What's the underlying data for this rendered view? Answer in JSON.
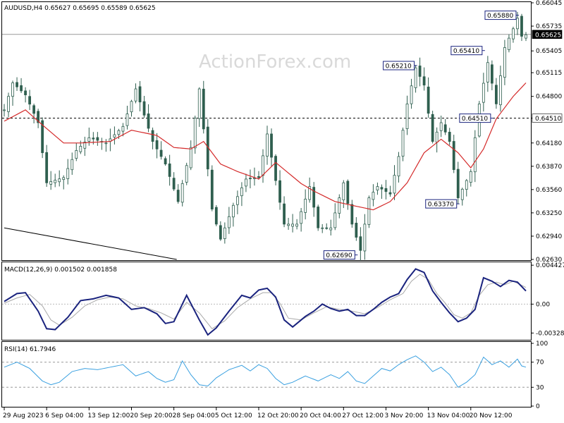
{
  "colors": {
    "candle": "#2f5f4f",
    "ma": "#d42a2a",
    "macd": "#1a237e",
    "signal": "#a9a9a9",
    "rsi": "#3aa0e0",
    "annot_border": "#1a237e",
    "price_tag_bg": "#000000"
  },
  "chart_data": [
    {
      "type": "candlestick",
      "title": "AUDUSD,H4  0.65627 0.65695 0.65589 0.65625",
      "watermark": "ActionForex.com",
      "ylim": [
        0.6263,
        0.66045
      ],
      "y_ticks": [
        "0.66045",
        "0.65735",
        "0.65405",
        "0.65115",
        "0.64800",
        "0.64510",
        "0.64180",
        "0.63870",
        "0.63560",
        "0.63250",
        "0.62940",
        "0.62630"
      ],
      "y_tick_values": [
        0.66045,
        0.65735,
        0.65405,
        0.65115,
        0.648,
        0.6451,
        0.6418,
        0.6387,
        0.6356,
        0.6325,
        0.6294,
        0.6263
      ],
      "current_price": "0.65625",
      "current_price_value": 0.65625,
      "support_level": "0.64510",
      "support_level_value": 0.6451,
      "annotations": [
        {
          "label": "0.65880",
          "value": 0.6588,
          "bar": 121
        },
        {
          "label": "0.65410",
          "value": 0.6541,
          "bar": 113
        },
        {
          "label": "0.65210",
          "value": 0.6521,
          "bar": 97
        },
        {
          "label": "0.64510",
          "value": 0.6451,
          "bar": 115
        },
        {
          "label": "0.63370",
          "value": 0.6337,
          "bar": 107
        },
        {
          "label": "0.62690",
          "value": 0.6269,
          "bar": 83
        }
      ],
      "trendline": {
        "from": [
          0,
          0.6305
        ],
        "to": [
          40,
          0.6263
        ]
      },
      "bars": 124,
      "price_waypoints": [
        [
          0,
          0.6462
        ],
        [
          2,
          0.6498
        ],
        [
          5,
          0.6482
        ],
        [
          8,
          0.6445
        ],
        [
          10,
          0.6365
        ],
        [
          14,
          0.6372
        ],
        [
          17,
          0.6408
        ],
        [
          20,
          0.6425
        ],
        [
          24,
          0.6418
        ],
        [
          28,
          0.644
        ],
        [
          31,
          0.649
        ],
        [
          35,
          0.642
        ],
        [
          38,
          0.639
        ],
        [
          41,
          0.634
        ],
        [
          44,
          0.6412
        ],
        [
          46,
          0.649
        ],
        [
          49,
          0.633
        ],
        [
          51,
          0.629
        ],
        [
          54,
          0.6335
        ],
        [
          57,
          0.637
        ],
        [
          60,
          0.6372
        ],
        [
          62,
          0.643
        ],
        [
          64,
          0.6368
        ],
        [
          66,
          0.631
        ],
        [
          69,
          0.631
        ],
        [
          72,
          0.636
        ],
        [
          74,
          0.6305
        ],
        [
          77,
          0.6305
        ],
        [
          80,
          0.6365
        ],
        [
          82,
          0.631
        ],
        [
          84,
          0.6275
        ],
        [
          86,
          0.6345
        ],
        [
          88,
          0.636
        ],
        [
          91,
          0.635
        ],
        [
          93,
          0.64
        ],
        [
          95,
          0.647
        ],
        [
          97,
          0.6518
        ],
        [
          99,
          0.6495
        ],
        [
          101,
          0.642
        ],
        [
          103,
          0.6445
        ],
        [
          105,
          0.642
        ],
        [
          107,
          0.6345
        ],
        [
          109,
          0.6368
        ],
        [
          110,
          0.638
        ],
        [
          112,
          0.647
        ],
        [
          114,
          0.6525
        ],
        [
          116,
          0.647
        ],
        [
          118,
          0.6545
        ],
        [
          120,
          0.657
        ],
        [
          121,
          0.6584
        ],
        [
          122,
          0.656
        ],
        [
          123,
          0.6562
        ]
      ],
      "ma_waypoints": [
        [
          0,
          0.6447
        ],
        [
          5,
          0.6462
        ],
        [
          9,
          0.6442
        ],
        [
          14,
          0.6418
        ],
        [
          18,
          0.6418
        ],
        [
          25,
          0.642
        ],
        [
          30,
          0.6435
        ],
        [
          36,
          0.6428
        ],
        [
          40,
          0.6412
        ],
        [
          44,
          0.641
        ],
        [
          47,
          0.642
        ],
        [
          51,
          0.639
        ],
        [
          55,
          0.638
        ],
        [
          60,
          0.637
        ],
        [
          64,
          0.6392
        ],
        [
          67,
          0.6378
        ],
        [
          70,
          0.6364
        ],
        [
          73,
          0.6354
        ],
        [
          78,
          0.634
        ],
        [
          82,
          0.6335
        ],
        [
          87,
          0.6329
        ],
        [
          91,
          0.634
        ],
        [
          95,
          0.6365
        ],
        [
          99,
          0.6405
        ],
        [
          103,
          0.6423
        ],
        [
          107,
          0.6405
        ],
        [
          110,
          0.6385
        ],
        [
          113,
          0.641
        ],
        [
          116,
          0.645
        ],
        [
          120,
          0.648
        ],
        [
          123,
          0.6498
        ]
      ]
    },
    {
      "type": "line",
      "title": "MACD(12,26,9) 0.001502 0.001858",
      "ylim": [
        -0.0039,
        0.0046
      ],
      "y_ticks": [
        "0.004427",
        "0.00",
        "-0.003288"
      ],
      "y_tick_values": [
        0.004427,
        0.0,
        -0.003288
      ],
      "series": [
        {
          "name": "MACD",
          "waypoints": [
            [
              0,
              0.0003
            ],
            [
              3,
              0.0012
            ],
            [
              5,
              0.0013
            ],
            [
              8,
              -0.0008
            ],
            [
              10,
              -0.0028
            ],
            [
              12,
              -0.0029
            ],
            [
              15,
              -0.0015
            ],
            [
              18,
              0.0004
            ],
            [
              21,
              0.0006
            ],
            [
              24,
              0.001
            ],
            [
              27,
              0.0007
            ],
            [
              30,
              -0.0006
            ],
            [
              33,
              -0.0004
            ],
            [
              36,
              -0.0011
            ],
            [
              38,
              -0.0022
            ],
            [
              40,
              -0.002
            ],
            [
              43,
              0.001
            ],
            [
              46,
              -0.0018
            ],
            [
              48,
              -0.0035
            ],
            [
              50,
              -0.0027
            ],
            [
              53,
              -0.0008
            ],
            [
              56,
              0.001
            ],
            [
              58,
              0.0007
            ],
            [
              60,
              0.0016
            ],
            [
              62,
              0.0018
            ],
            [
              64,
              0.0008
            ],
            [
              66,
              -0.0018
            ],
            [
              68,
              -0.0026
            ],
            [
              71,
              -0.0014
            ],
            [
              73,
              -0.0008
            ],
            [
              75,
              0.0
            ],
            [
              77,
              -0.0005
            ],
            [
              79,
              -0.0008
            ],
            [
              81,
              -0.0006
            ],
            [
              83,
              -0.0013
            ],
            [
              85,
              -0.0013
            ],
            [
              87,
              -0.0006
            ],
            [
              89,
              0.0002
            ],
            [
              91,
              0.0008
            ],
            [
              93,
              0.0012
            ],
            [
              95,
              0.0028
            ],
            [
              97,
              0.004
            ],
            [
              99,
              0.0036
            ],
            [
              101,
              0.0015
            ],
            [
              103,
              0.0002
            ],
            [
              105,
              -0.001
            ],
            [
              107,
              -0.002
            ],
            [
              109,
              -0.0016
            ],
            [
              111,
              -0.0006
            ],
            [
              113,
              0.003
            ],
            [
              115,
              0.0026
            ],
            [
              117,
              0.002
            ],
            [
              119,
              0.0027
            ],
            [
              121,
              0.0025
            ],
            [
              123,
              0.0015
            ]
          ]
        },
        {
          "name": "Signal",
          "waypoints": [
            [
              0,
              0.0001
            ],
            [
              3,
              0.0007
            ],
            [
              6,
              0.0011
            ],
            [
              9,
              -0.0002
            ],
            [
              11,
              -0.0018
            ],
            [
              13,
              -0.0024
            ],
            [
              16,
              -0.0015
            ],
            [
              19,
              -0.0002
            ],
            [
              22,
              0.0005
            ],
            [
              25,
              0.0008
            ],
            [
              28,
              0.0006
            ],
            [
              31,
              -0.0002
            ],
            [
              34,
              -0.0005
            ],
            [
              37,
              -0.001
            ],
            [
              40,
              -0.0017
            ],
            [
              43,
              0.0002
            ],
            [
              46,
              -0.001
            ],
            [
              49,
              -0.0028
            ],
            [
              52,
              -0.0019
            ],
            [
              55,
              -0.0004
            ],
            [
              58,
              0.0006
            ],
            [
              61,
              0.0013
            ],
            [
              63,
              0.0013
            ],
            [
              65,
              0.0001
            ],
            [
              67,
              -0.0016
            ],
            [
              70,
              -0.0018
            ],
            [
              73,
              -0.001
            ],
            [
              76,
              -0.0003
            ],
            [
              79,
              -0.0006
            ],
            [
              82,
              -0.0008
            ],
            [
              85,
              -0.0011
            ],
            [
              88,
              -0.0004
            ],
            [
              91,
              0.0005
            ],
            [
              94,
              0.0012
            ],
            [
              96,
              0.0026
            ],
            [
              98,
              0.0034
            ],
            [
              100,
              0.0028
            ],
            [
              102,
              0.0012
            ],
            [
              104,
              0.0001
            ],
            [
              106,
              -0.0012
            ],
            [
              108,
              -0.0016
            ],
            [
              110,
              -0.001
            ],
            [
              112,
              0.001
            ],
            [
              114,
              0.0022
            ],
            [
              116,
              0.0025
            ],
            [
              118,
              0.0022
            ],
            [
              120,
              0.0026
            ],
            [
              123,
              0.0019
            ]
          ]
        }
      ]
    },
    {
      "type": "line",
      "title": "RSI(14) 61.7946",
      "ylim": [
        0,
        100
      ],
      "y_ticks": [
        "100",
        "70",
        "30",
        "0"
      ],
      "y_tick_values": [
        100,
        70,
        30,
        0
      ],
      "series": [
        {
          "name": "RSI",
          "waypoints": [
            [
              0,
              62
            ],
            [
              3,
              70
            ],
            [
              6,
              60
            ],
            [
              9,
              40
            ],
            [
              11,
              34
            ],
            [
              13,
              38
            ],
            [
              16,
              55
            ],
            [
              19,
              60
            ],
            [
              22,
              58
            ],
            [
              25,
              62
            ],
            [
              28,
              66
            ],
            [
              31,
              48
            ],
            [
              34,
              55
            ],
            [
              36,
              44
            ],
            [
              38,
              38
            ],
            [
              40,
              42
            ],
            [
              42,
              72
            ],
            [
              44,
              50
            ],
            [
              46,
              34
            ],
            [
              48,
              32
            ],
            [
              50,
              45
            ],
            [
              53,
              58
            ],
            [
              56,
              65
            ],
            [
              58,
              56
            ],
            [
              60,
              66
            ],
            [
              62,
              60
            ],
            [
              64,
              44
            ],
            [
              66,
              34
            ],
            [
              68,
              38
            ],
            [
              71,
              48
            ],
            [
              74,
              40
            ],
            [
              77,
              50
            ],
            [
              79,
              44
            ],
            [
              81,
              55
            ],
            [
              83,
              40
            ],
            [
              85,
              36
            ],
            [
              87,
              48
            ],
            [
              89,
              60
            ],
            [
              91,
              56
            ],
            [
              93,
              66
            ],
            [
              95,
              74
            ],
            [
              97,
              80
            ],
            [
              99,
              70
            ],
            [
              101,
              55
            ],
            [
              103,
              62
            ],
            [
              105,
              50
            ],
            [
              107,
              30
            ],
            [
              109,
              38
            ],
            [
              111,
              50
            ],
            [
              113,
              78
            ],
            [
              115,
              66
            ],
            [
              117,
              72
            ],
            [
              119,
              62
            ],
            [
              121,
              75
            ],
            [
              122,
              64
            ],
            [
              123,
              62
            ]
          ]
        }
      ],
      "guides": [
        70,
        30
      ]
    }
  ],
  "x_axis": {
    "labels": [
      "29 Aug 2023",
      "6 Sep 04:00",
      "13 Sep 12:00",
      "20 Sep 20:00",
      "28 Sep 04:00",
      "5 Oct 12:00",
      "12 Oct 20:00",
      "20 Oct 04:00",
      "27 Oct 12:00",
      "3 Nov 20:00",
      "13 Nov 04:00",
      "20 Nov 12:00"
    ],
    "label_bars": [
      0,
      10,
      20,
      30,
      40,
      50,
      60,
      70,
      80,
      90,
      100,
      110
    ]
  }
}
